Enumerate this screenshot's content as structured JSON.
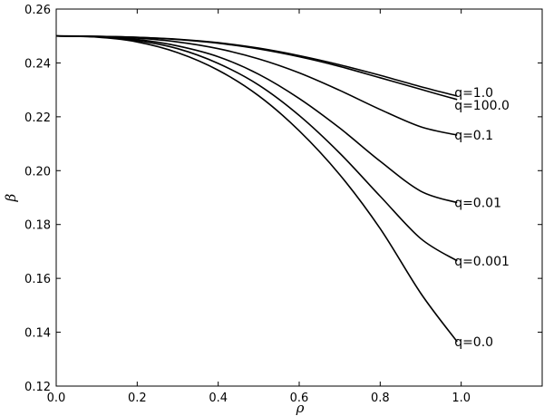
{
  "chart_data": {
    "type": "line",
    "title": "",
    "xlabel": "ρ",
    "ylabel": "β",
    "xlim": [
      0.0,
      1.2
    ],
    "ylim": [
      0.12,
      0.26
    ],
    "xticks": [
      "0.0",
      "0.2",
      "0.4",
      "0.6",
      "0.8",
      "1.0"
    ],
    "yticks": [
      "0.12",
      "0.14",
      "0.16",
      "0.18",
      "0.20",
      "0.22",
      "0.24",
      "0.26"
    ],
    "grid": false,
    "legend": "none",
    "line_color": "#000000",
    "series": [
      {
        "name": "q=1.0",
        "x": [
          0.0,
          0.1,
          0.2,
          0.3,
          0.4,
          0.5,
          0.6,
          0.7,
          0.8,
          0.9,
          0.99
        ],
        "y": [
          0.25,
          0.2499,
          0.2495,
          0.2488,
          0.2475,
          0.2455,
          0.2427,
          0.2393,
          0.2354,
          0.2312,
          0.2277
        ]
      },
      {
        "name": "q=100.0",
        "x": [
          0.0,
          0.1,
          0.2,
          0.3,
          0.4,
          0.5,
          0.6,
          0.7,
          0.8,
          0.9,
          0.99
        ],
        "y": [
          0.25,
          0.2499,
          0.2495,
          0.2487,
          0.2473,
          0.2452,
          0.2423,
          0.2387,
          0.2345,
          0.2302,
          0.2264
        ]
      },
      {
        "name": "q=0.1",
        "x": [
          0.0,
          0.1,
          0.2,
          0.3,
          0.4,
          0.5,
          0.6,
          0.7,
          0.8,
          0.9,
          0.99
        ],
        "y": [
          0.25,
          0.2498,
          0.2492,
          0.2478,
          0.2453,
          0.2415,
          0.2363,
          0.2298,
          0.2227,
          0.2163,
          0.2132
        ]
      },
      {
        "name": "q=0.01",
        "x": [
          0.0,
          0.1,
          0.2,
          0.3,
          0.4,
          0.5,
          0.6,
          0.7,
          0.8,
          0.9,
          0.99
        ],
        "y": [
          0.25,
          0.2497,
          0.2487,
          0.2463,
          0.2423,
          0.2358,
          0.2268,
          0.2158,
          0.2035,
          0.1924,
          0.1881
        ]
      },
      {
        "name": "q=0.001",
        "x": [
          0.0,
          0.1,
          0.2,
          0.3,
          0.4,
          0.5,
          0.6,
          0.7,
          0.8,
          0.9,
          0.99
        ],
        "y": [
          0.25,
          0.2497,
          0.2483,
          0.2453,
          0.2398,
          0.2318,
          0.2205,
          0.2065,
          0.1905,
          0.1748,
          0.1665
        ]
      },
      {
        "name": "q=0.0",
        "x": [
          0.0,
          0.1,
          0.2,
          0.3,
          0.4,
          0.5,
          0.6,
          0.7,
          0.8,
          0.9,
          0.99
        ],
        "y": [
          0.25,
          0.2496,
          0.2478,
          0.2438,
          0.2373,
          0.2278,
          0.2148,
          0.1985,
          0.1785,
          0.1545,
          0.1365
        ]
      }
    ]
  }
}
